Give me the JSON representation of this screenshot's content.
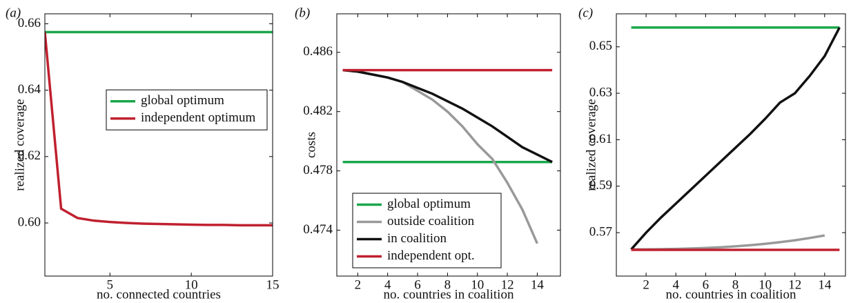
{
  "chart_data": [
    {
      "type": "line",
      "label": "(a)",
      "xlabel": "no. connected countries",
      "ylabel": "realized coverage",
      "xlim": [
        1,
        15
      ],
      "ylim": [
        0.584,
        0.663
      ],
      "xticks": [
        5,
        10,
        15
      ],
      "yticks": [
        {
          "value": 0.6,
          "label": "0.60"
        },
        {
          "value": 0.62,
          "label": "0.62"
        },
        {
          "value": 0.64,
          "label": "0.64"
        },
        {
          "value": 0.66,
          "label": "0.66"
        }
      ],
      "legend": "center right",
      "series": [
        {
          "name": "global optimum",
          "color": "#1aa64a",
          "x": [
            1,
            15
          ],
          "values": [
            0.6575,
            0.6575
          ]
        },
        {
          "name": "independent optimum",
          "color": "#c0202f",
          "x": [
            1,
            2,
            3,
            4,
            5,
            6,
            7,
            8,
            9,
            10,
            11,
            12,
            13,
            14,
            15
          ],
          "values": [
            0.6575,
            0.6043,
            0.6015,
            0.6007,
            0.6003,
            0.6,
            0.5998,
            0.5997,
            0.5996,
            0.5995,
            0.5994,
            0.5994,
            0.5993,
            0.5993,
            0.5993
          ]
        }
      ]
    },
    {
      "type": "line",
      "label": "(b)",
      "xlabel": "no. countries in coalition",
      "ylabel": "costs",
      "xlim": [
        0.6,
        15.55
      ],
      "ylim": [
        0.4709,
        0.4886
      ],
      "xticks": [
        2,
        4,
        6,
        8,
        10,
        12,
        14
      ],
      "yticks": [
        0.474,
        0.478,
        0.482,
        0.486
      ],
      "legend": "lower left",
      "series": [
        {
          "name": "global optimum",
          "color": "#1aa64a",
          "x": [
            1,
            15
          ],
          "values": [
            0.4786,
            0.4786
          ]
        },
        {
          "name": "outside coalition",
          "color": "#999999",
          "x": [
            1,
            2,
            3,
            4,
            5,
            6,
            7,
            8,
            9,
            10,
            11,
            12,
            13,
            14
          ],
          "values": [
            0.4848,
            0.4847,
            0.4845,
            0.4843,
            0.484,
            0.4834,
            0.4828,
            0.482,
            0.481,
            0.4798,
            0.4788,
            0.4772,
            0.4754,
            0.4731
          ]
        },
        {
          "name": "in coalition",
          "color": "#111111",
          "x": [
            1,
            2,
            3,
            4,
            5,
            6,
            7,
            8,
            9,
            10,
            11,
            12,
            13,
            14,
            15
          ],
          "values": [
            0.4848,
            0.4847,
            0.4845,
            0.4843,
            0.484,
            0.4836,
            0.4832,
            0.4827,
            0.4822,
            0.4816,
            0.481,
            0.4803,
            0.4796,
            0.4791,
            0.4786
          ]
        },
        {
          "name": "independent opt.",
          "color": "#c0202f",
          "x": [
            1,
            15
          ],
          "values": [
            0.4848,
            0.4848
          ]
        }
      ]
    },
    {
      "type": "line",
      "label": "(c)",
      "xlabel": "no. countries in coalition",
      "ylabel": "realized coverage",
      "xlim": [
        0,
        15.4
      ],
      "ylim": [
        0.5513,
        0.6642
      ],
      "xticks": [
        2,
        4,
        6,
        8,
        10,
        12,
        14
      ],
      "yticks": [
        0.57,
        0.59,
        0.61,
        0.63,
        0.65
      ],
      "series": [
        {
          "color": "#1aa64a",
          "x": [
            1,
            15
          ],
          "values": [
            0.6583,
            0.6583
          ]
        },
        {
          "color": "#999999",
          "x": [
            1,
            2,
            3,
            4,
            5,
            6,
            7,
            8,
            9,
            10,
            11,
            12,
            13,
            14
          ],
          "values": [
            0.5628,
            0.5628,
            0.5629,
            0.563,
            0.5632,
            0.5634,
            0.5637,
            0.5641,
            0.5646,
            0.5652,
            0.5659,
            0.5667,
            0.5677,
            0.5688
          ]
        },
        {
          "color": "#111111",
          "x": [
            1,
            2,
            3,
            4,
            5,
            6,
            7,
            8,
            9,
            10,
            11,
            12,
            13,
            14,
            15
          ],
          "values": [
            0.5628,
            0.57,
            0.5765,
            0.5825,
            0.5885,
            0.5945,
            0.6005,
            0.6065,
            0.6125,
            0.619,
            0.626,
            0.63,
            0.6375,
            0.646,
            0.6583
          ]
        },
        {
          "color": "#c0202f",
          "x": [
            1,
            15
          ],
          "values": [
            0.5626,
            0.5626
          ]
        }
      ]
    }
  ]
}
